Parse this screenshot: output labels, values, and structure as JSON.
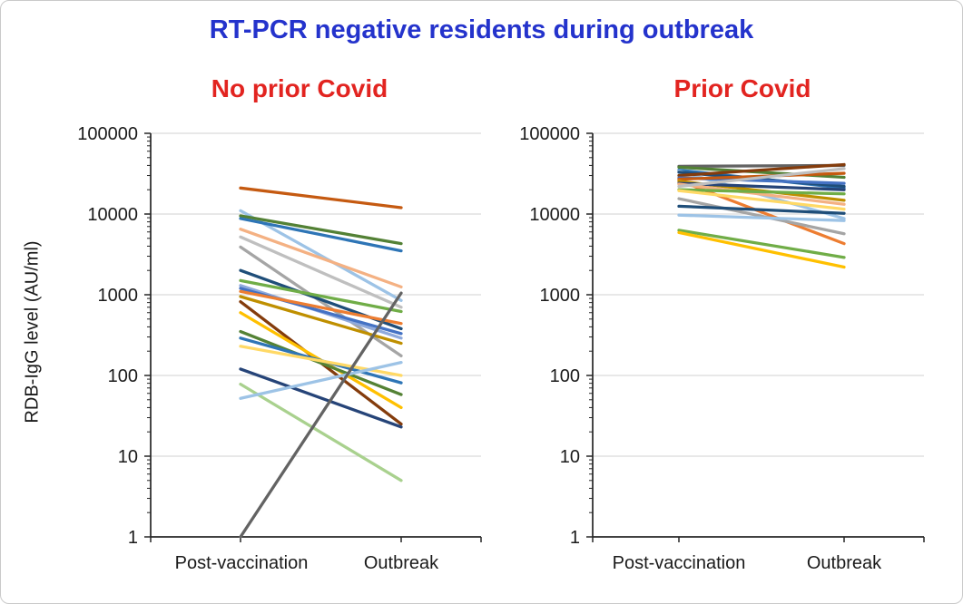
{
  "figure": {
    "title": "RT-PCR negative residents during outbreak",
    "title_color": "#2433cc",
    "panel_title_color": "#e22420",
    "ylabel": "RDB-IgG level (AU/ml)"
  },
  "chart_data": [
    {
      "type": "line",
      "title": "No prior Covid",
      "categories": [
        "Post-vaccination",
        "Outbreak"
      ],
      "xlabel": "",
      "ylabel": "RDB-IgG level (AU/ml)",
      "yscale": "log",
      "ylim": [
        1,
        100000
      ],
      "ytick_labels": [
        "1",
        "10",
        "100",
        "1000",
        "10000",
        "100000"
      ],
      "grid": "horizontal",
      "legend": "none",
      "series": [
        {
          "color": "#C55A11",
          "values": [
            21000,
            12000
          ]
        },
        {
          "color": "#9DC3E6",
          "values": [
            11000,
            850
          ]
        },
        {
          "color": "#538135",
          "values": [
            9500,
            4300
          ]
        },
        {
          "color": "#2E75B6",
          "values": [
            8800,
            3500
          ]
        },
        {
          "color": "#F4B183",
          "values": [
            6500,
            1250
          ]
        },
        {
          "color": "#BFBFBF",
          "values": [
            5200,
            700
          ]
        },
        {
          "color": "#A5A5A5",
          "values": [
            3900,
            175
          ]
        },
        {
          "color": "#1F4E79",
          "values": [
            2000,
            380
          ]
        },
        {
          "color": "#70AD47",
          "values": [
            1500,
            620
          ]
        },
        {
          "color": "#8FAADC",
          "values": [
            1300,
            290
          ]
        },
        {
          "color": "#4472C4",
          "values": [
            1200,
            330
          ]
        },
        {
          "color": "#ED7D31",
          "values": [
            1100,
            440
          ]
        },
        {
          "color": "#BF8F00",
          "values": [
            950,
            250
          ]
        },
        {
          "color": "#843C0C",
          "values": [
            820,
            25
          ]
        },
        {
          "color": "#FFC000",
          "values": [
            600,
            40
          ]
        },
        {
          "color": "#548235",
          "values": [
            350,
            58
          ]
        },
        {
          "color": "#2E75B6",
          "values": [
            290,
            81
          ]
        },
        {
          "color": "#FFD966",
          "values": [
            230,
            100
          ]
        },
        {
          "color": "#264478",
          "values": [
            120,
            23
          ]
        },
        {
          "color": "#A9D18E",
          "values": [
            78,
            5
          ]
        },
        {
          "color": "#9DC3E6",
          "values": [
            52,
            145
          ]
        },
        {
          "color": "#636363",
          "values": [
            1,
            1050
          ]
        }
      ]
    },
    {
      "type": "line",
      "title": "Prior Covid",
      "categories": [
        "Post-vaccination",
        "Outbreak"
      ],
      "xlabel": "",
      "ylabel": "RDB-IgG level (AU/ml)",
      "yscale": "log",
      "ylim": [
        1,
        100000
      ],
      "ytick_labels": [
        "1",
        "10",
        "100",
        "1000",
        "10000",
        "100000"
      ],
      "grid": "horizontal",
      "legend": "none",
      "series": [
        {
          "color": "#636363",
          "values": [
            39000,
            40000
          ]
        },
        {
          "color": "#538135",
          "values": [
            38000,
            28500
          ]
        },
        {
          "color": "#2E75B6",
          "values": [
            35000,
            21000
          ]
        },
        {
          "color": "#9DC3E6",
          "values": [
            34000,
            8800
          ]
        },
        {
          "color": "#1F4E79",
          "values": [
            33000,
            22000
          ]
        },
        {
          "color": "#843C0C",
          "values": [
            30000,
            41000
          ]
        },
        {
          "color": "#4472C4",
          "values": [
            28000,
            24000
          ]
        },
        {
          "color": "#C55A11",
          "values": [
            27000,
            32000
          ]
        },
        {
          "color": "#ED7D31",
          "values": [
            26000,
            4300
          ]
        },
        {
          "color": "#BF8F00",
          "values": [
            25500,
            14800
          ]
        },
        {
          "color": "#264478",
          "values": [
            24000,
            20000
          ]
        },
        {
          "color": "#F4B183",
          "values": [
            23500,
            13200
          ]
        },
        {
          "color": "#BFBFBF",
          "values": [
            22000,
            36500
          ]
        },
        {
          "color": "#70AD47",
          "values": [
            20000,
            17800
          ]
        },
        {
          "color": "#FFD966",
          "values": [
            19500,
            11500
          ]
        },
        {
          "color": "#A5A5A5",
          "values": [
            15500,
            5700
          ]
        },
        {
          "color": "#1F4E79",
          "values": [
            12500,
            10200
          ]
        },
        {
          "color": "#9DC3E6",
          "values": [
            9700,
            8300
          ]
        },
        {
          "color": "#70AD47",
          "values": [
            6300,
            2900
          ]
        },
        {
          "color": "#FFC000",
          "values": [
            5900,
            2200
          ]
        }
      ]
    }
  ]
}
